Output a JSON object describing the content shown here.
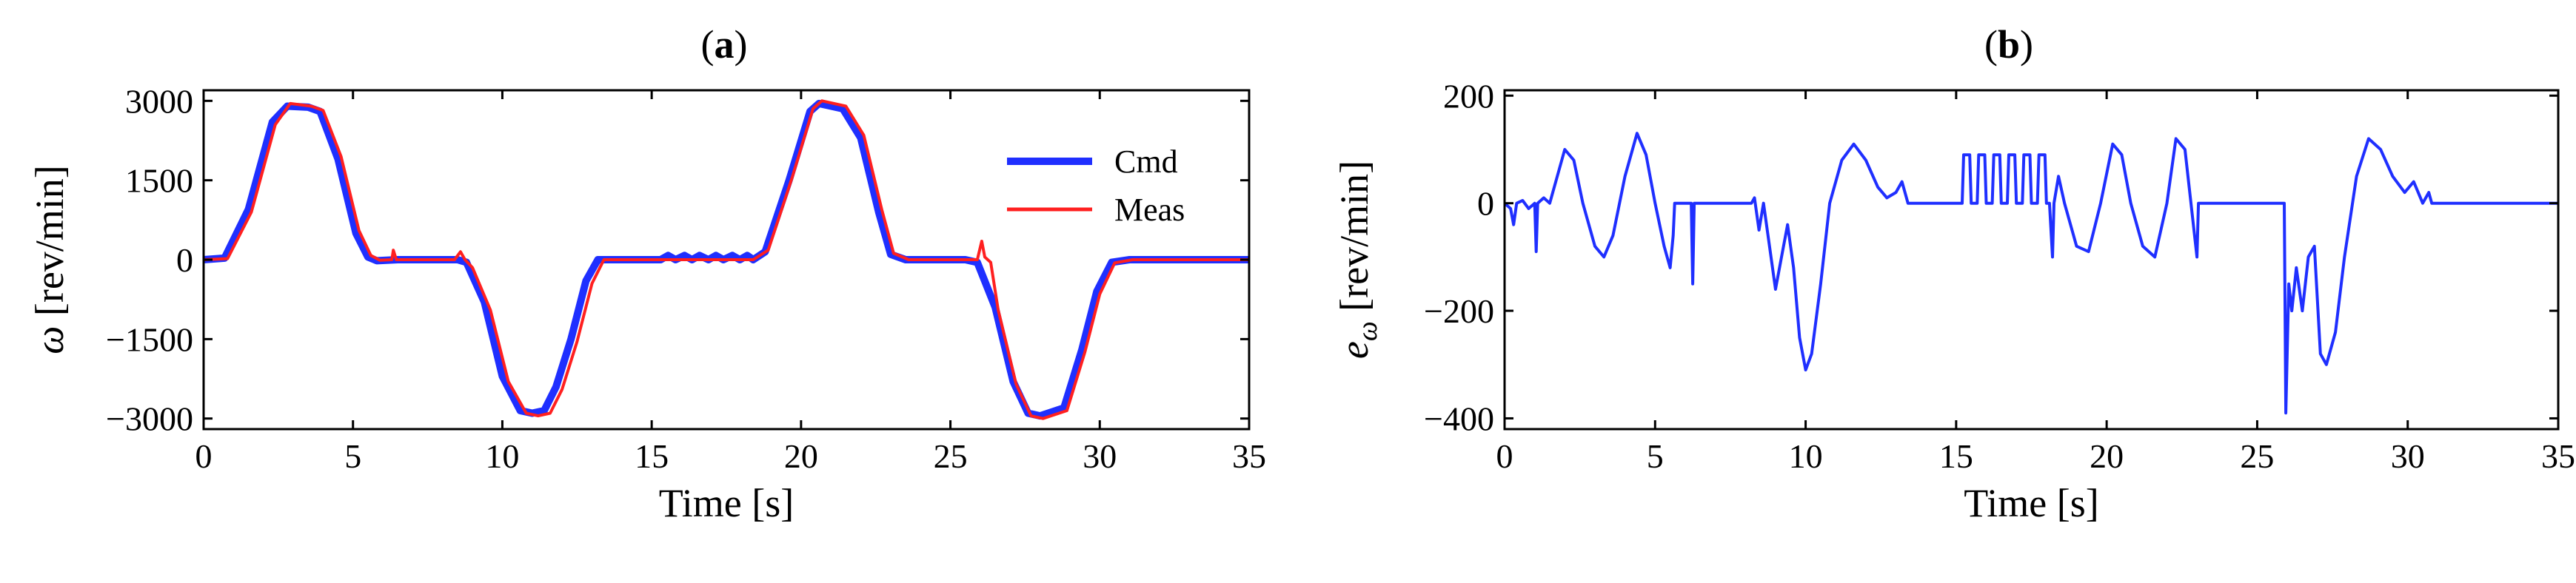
{
  "chart_data": [
    {
      "type": "line",
      "panel_label": "(a)",
      "panel_letter": "a",
      "title": "",
      "xlabel": "Time [s]",
      "ylabel": "ω [rev/min]",
      "xlim": [
        0,
        35
      ],
      "ylim": [
        -3200,
        3200
      ],
      "xticks": [
        0,
        5,
        10,
        15,
        20,
        25,
        30,
        35
      ],
      "yticks": [
        -3000,
        -1500,
        0,
        1500,
        3000
      ],
      "legend_position": "top-right",
      "series": [
        {
          "name": "Cmd",
          "color": "#1f2fff",
          "x": [
            0,
            0.7,
            1.5,
            2.3,
            2.8,
            3.5,
            3.9,
            4.5,
            5.1,
            5.5,
            5.8,
            6.5,
            7.5,
            8.5,
            8.8,
            9.4,
            10.0,
            10.6,
            11.0,
            11.4,
            11.8,
            12.3,
            12.8,
            13.2,
            13.8,
            15.3,
            15.55,
            15.8,
            16.1,
            16.35,
            16.6,
            16.9,
            17.15,
            17.4,
            17.7,
            17.95,
            18.2,
            18.4,
            18.8,
            19.6,
            20.3,
            20.6,
            21.4,
            22.0,
            22.6,
            23.0,
            23.5,
            24.5,
            25.5,
            25.9,
            26.5,
            27.1,
            27.6,
            28.0,
            28.8,
            29.4,
            29.9,
            30.4,
            31.0,
            33.0,
            35.0
          ],
          "values": [
            0,
            30,
            950,
            2600,
            2900,
            2880,
            2800,
            1900,
            500,
            50,
            -20,
            0,
            0,
            0,
            -50,
            -800,
            -2200,
            -2850,
            -2900,
            -2850,
            -2400,
            -1500,
            -400,
            0,
            0,
            0,
            80,
            0,
            80,
            0,
            80,
            0,
            80,
            0,
            80,
            0,
            80,
            0,
            150,
            1500,
            2800,
            2950,
            2850,
            2300,
            900,
            100,
            0,
            0,
            0,
            -50,
            -900,
            -2300,
            -2900,
            -2950,
            -2800,
            -1700,
            -600,
            -50,
            0,
            0,
            0
          ]
        },
        {
          "name": "Meas",
          "color": "#ff2020",
          "x": [
            0,
            0.8,
            1.6,
            2.4,
            2.9,
            3.6,
            4.0,
            4.6,
            5.2,
            5.6,
            5.9,
            6.3,
            6.35,
            6.45,
            6.6,
            7.5,
            8.4,
            8.6,
            8.75,
            9.0,
            9.6,
            10.2,
            10.8,
            11.2,
            11.6,
            12.0,
            12.5,
            13.0,
            13.4,
            13.9,
            15.3,
            17.0,
            18.4,
            18.9,
            19.7,
            20.4,
            20.7,
            21.5,
            22.1,
            22.7,
            23.1,
            23.6,
            25.0,
            25.9,
            26.05,
            26.15,
            26.35,
            26.6,
            27.2,
            27.7,
            28.1,
            28.9,
            29.5,
            30.0,
            30.5,
            31.1,
            33.0,
            35.0
          ],
          "values": [
            0,
            20,
            900,
            2550,
            2950,
            2900,
            2820,
            1950,
            550,
            80,
            -10,
            0,
            180,
            0,
            0,
            0,
            0,
            150,
            0,
            -150,
            -950,
            -2300,
            -2900,
            -2950,
            -2900,
            -2450,
            -1550,
            -450,
            0,
            0,
            0,
            0,
            0,
            180,
            1550,
            2850,
            3000,
            2900,
            2350,
            950,
            120,
            0,
            0,
            0,
            350,
            50,
            -50,
            -950,
            -2350,
            -2950,
            -3000,
            -2850,
            -1750,
            -650,
            -60,
            0,
            0,
            0
          ]
        }
      ]
    },
    {
      "type": "line",
      "panel_label": "(b)",
      "panel_letter": "b",
      "title": "",
      "xlabel": "Time [s]",
      "ylabel": "e_ω [rev/min]",
      "ylabel_main": "e",
      "ylabel_sub": "ω",
      "ylabel_unit": " [rev/min]",
      "xlim": [
        0,
        35
      ],
      "ylim": [
        -420,
        210
      ],
      "xticks": [
        0,
        5,
        10,
        15,
        20,
        25,
        30,
        35
      ],
      "yticks": [
        -400,
        -200,
        0,
        200
      ],
      "series": [
        {
          "name": "e_ω",
          "color": "#1f2fff",
          "x": [
            0,
            0.2,
            0.3,
            0.4,
            0.6,
            0.8,
            1.0,
            1.05,
            1.1,
            1.3,
            1.5,
            1.8,
            2.0,
            2.3,
            2.6,
            3.0,
            3.3,
            3.6,
            4.0,
            4.4,
            4.7,
            5.0,
            5.3,
            5.5,
            5.6,
            5.65,
            5.7,
            5.8,
            6.0,
            6.2,
            6.25,
            6.3,
            6.5,
            7.0,
            7.5,
            8.0,
            8.2,
            8.3,
            8.45,
            8.6,
            8.8,
            9.0,
            9.2,
            9.4,
            9.6,
            9.8,
            10.0,
            10.2,
            10.5,
            10.8,
            11.2,
            11.6,
            12.0,
            12.4,
            12.7,
            13.0,
            13.2,
            13.4,
            15.2,
            15.25,
            15.45,
            15.5,
            15.7,
            15.75,
            15.95,
            16.0,
            16.2,
            16.25,
            16.45,
            16.5,
            16.7,
            16.75,
            16.95,
            17.0,
            17.2,
            17.25,
            17.45,
            17.5,
            17.7,
            17.75,
            17.95,
            18.0,
            18.1,
            18.2,
            18.25,
            18.4,
            18.6,
            19.0,
            19.4,
            19.8,
            20.2,
            20.5,
            20.8,
            21.2,
            21.6,
            22.0,
            22.3,
            22.6,
            22.8,
            23.0,
            23.05,
            23.1,
            25.9,
            25.95,
            26.05,
            26.15,
            26.3,
            26.5,
            26.7,
            26.9,
            27.1,
            27.3,
            27.6,
            27.9,
            28.3,
            28.7,
            29.1,
            29.5,
            29.9,
            30.2,
            30.5,
            30.7,
            30.8,
            35.0
          ],
          "values": [
            0,
            -10,
            -40,
            0,
            5,
            -10,
            0,
            -90,
            0,
            10,
            0,
            60,
            100,
            80,
            0,
            -80,
            -100,
            -60,
            50,
            130,
            90,
            0,
            -80,
            -120,
            -60,
            0,
            0,
            0,
            0,
            0,
            -150,
            0,
            0,
            0,
            0,
            0,
            0,
            10,
            -50,
            0,
            -80,
            -160,
            -100,
            -40,
            -120,
            -250,
            -310,
            -280,
            -150,
            0,
            80,
            110,
            80,
            30,
            10,
            20,
            40,
            0,
            0,
            90,
            90,
            0,
            0,
            90,
            90,
            0,
            0,
            90,
            90,
            0,
            0,
            90,
            90,
            0,
            0,
            90,
            90,
            0,
            0,
            90,
            90,
            0,
            0,
            -100,
            0,
            50,
            0,
            -80,
            -90,
            0,
            110,
            90,
            0,
            -80,
            -100,
            0,
            120,
            100,
            0,
            -100,
            0,
            0,
            0,
            -390,
            -150,
            -200,
            -120,
            -200,
            -100,
            -80,
            -280,
            -300,
            -240,
            -100,
            50,
            120,
            100,
            50,
            20,
            40,
            0,
            20,
            0,
            0
          ]
        }
      ]
    }
  ]
}
